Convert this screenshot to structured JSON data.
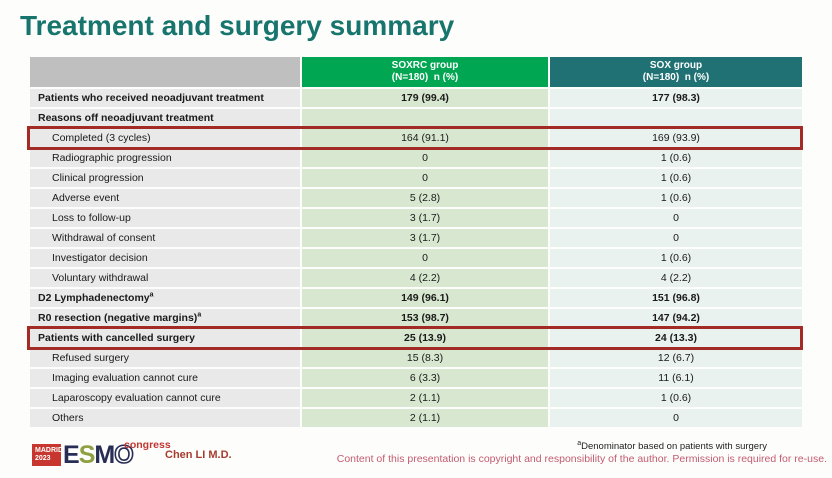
{
  "slide": {
    "title": "Treatment and surgery summary"
  },
  "colors": {
    "title_teal": "#17756d",
    "soxrc_header_green": "#00a651",
    "sox_header_teal": "#1f7173",
    "label_cell_gray": "#e9e9e9",
    "soxrc_cell_green": "#d8e8d0",
    "sox_cell_mint": "#eaf2ef",
    "highlight_red": "#a22c25",
    "copyright_pink": "#c35c6e",
    "presenter_red": "#a53c2e"
  },
  "table": {
    "header": {
      "soxrc_line1": "SOXRC group",
      "soxrc_line2": "(N=180)  n (%)",
      "sox_line1": "SOX group",
      "sox_line2": "(N=180)  n (%)"
    },
    "rows": [
      {
        "label": "Patients who received neoadjuvant treatment",
        "soxrc": "179 (99.4)",
        "sox": "177 (98.3)",
        "bold": true
      },
      {
        "label": "Reasons off neoadjuvant treatment",
        "soxrc": "",
        "sox": "",
        "bold": true
      },
      {
        "label": "Completed (3 cycles)",
        "soxrc": "164 (91.1)",
        "sox": "169 (93.9)",
        "indent": true,
        "highlight": true
      },
      {
        "label": "Radiographic progression",
        "soxrc": "0",
        "sox": "1 (0.6)",
        "indent": true
      },
      {
        "label": "Clinical progression",
        "soxrc": "0",
        "sox": "1 (0.6)",
        "indent": true
      },
      {
        "label": "Adverse event",
        "soxrc": "5 (2.8)",
        "sox": "1 (0.6)",
        "indent": true
      },
      {
        "label": "Loss to follow-up",
        "soxrc": "3 (1.7)",
        "sox": "0",
        "indent": true
      },
      {
        "label": "Withdrawal of consent",
        "soxrc": "3 (1.7)",
        "sox": "0",
        "indent": true
      },
      {
        "label": "Investigator decision",
        "soxrc": "0",
        "sox": "1 (0.6)",
        "indent": true
      },
      {
        "label": "Voluntary withdrawal",
        "soxrc": "4 (2.2)",
        "sox": "4 (2.2)",
        "indent": true
      },
      {
        "label": "D2 Lymphadenectomy",
        "sup": "a",
        "soxrc": "149 (96.1)",
        "sox": "151 (96.8)",
        "bold": true
      },
      {
        "label": "R0 resection (negative margins)",
        "sup": "a",
        "soxrc": "153 (98.7)",
        "sox": "147 (94.2)",
        "bold": true
      },
      {
        "label": "Patients with cancelled surgery",
        "soxrc": "25 (13.9)",
        "sox": "24 (13.3)",
        "bold": true,
        "highlight": true
      },
      {
        "label": "Refused surgery",
        "soxrc": "15 (8.3)",
        "sox": "12 (6.7)",
        "indent": true
      },
      {
        "label": "Imaging evaluation cannot cure",
        "soxrc": "6 (3.3)",
        "sox": "11 (6.1)",
        "indent": true
      },
      {
        "label": "Laparoscopy evaluation cannot cure",
        "soxrc": "2 (1.1)",
        "sox": "1 (0.6)",
        "indent": true
      },
      {
        "label": "Others",
        "soxrc": "2 (1.1)",
        "sox": "0",
        "indent": true
      }
    ]
  },
  "footer": {
    "footnote_sup": "a",
    "footnote_text": "Denominator based on patients with surgery",
    "copyright": "Content of this presentation is copyright and responsibility of the author. Permission is required for re-use.",
    "presenter": "Chen LI M.D.",
    "logo": {
      "city": "MADRID",
      "year": "2023",
      "letters": [
        "E",
        "S",
        "M",
        "O"
      ],
      "congress": "congress"
    }
  }
}
